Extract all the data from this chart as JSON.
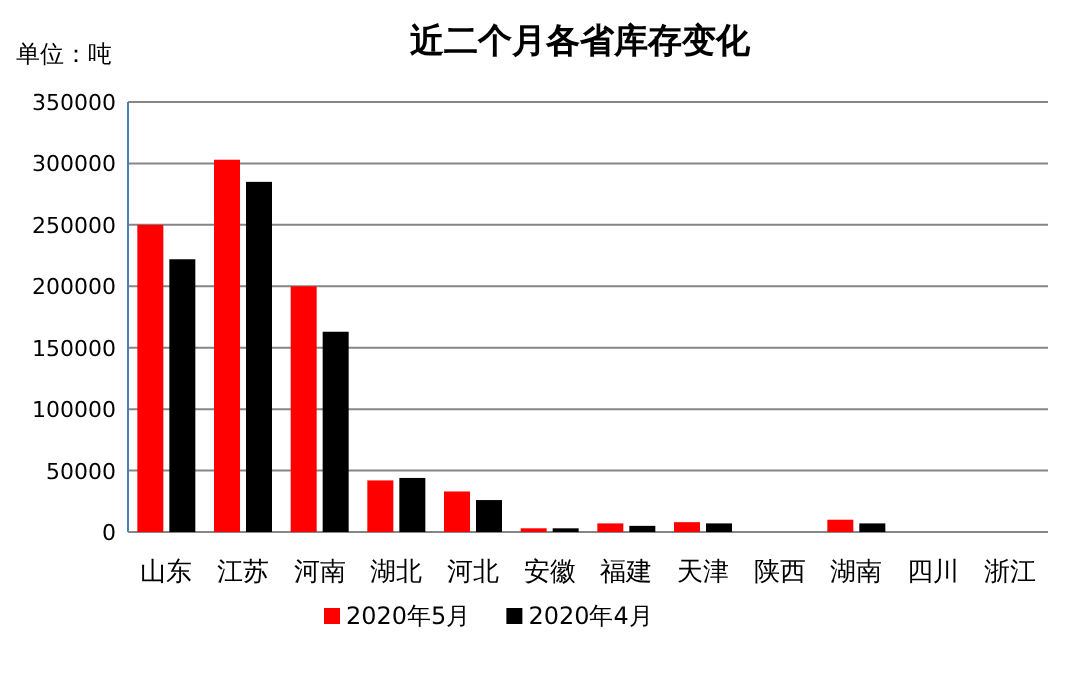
{
  "chart_data": {
    "type": "bar",
    "title": "近二个月各省库存变化",
    "ylabel": "单位：吨",
    "categories": [
      "山东",
      "江苏",
      "河南",
      "湖北",
      "河北",
      "安徽",
      "福建",
      "天津",
      "陕西",
      "湖南",
      "四川",
      "浙江"
    ],
    "series": [
      {
        "name": "2020年5月",
        "color": "#ff0000",
        "values": [
          250000,
          303000,
          200000,
          42000,
          33000,
          3000,
          7000,
          8000,
          0,
          10000,
          0,
          0
        ]
      },
      {
        "name": "2020年4月",
        "color": "#000000",
        "values": [
          222000,
          285000,
          163000,
          44000,
          26000,
          3000,
          5000,
          7000,
          0,
          7000,
          0,
          0
        ]
      }
    ],
    "ylim": [
      0,
      350000
    ],
    "yticks": [
      0,
      50000,
      100000,
      150000,
      200000,
      250000,
      300000,
      350000
    ],
    "grid": "y",
    "legend": "bottom"
  }
}
